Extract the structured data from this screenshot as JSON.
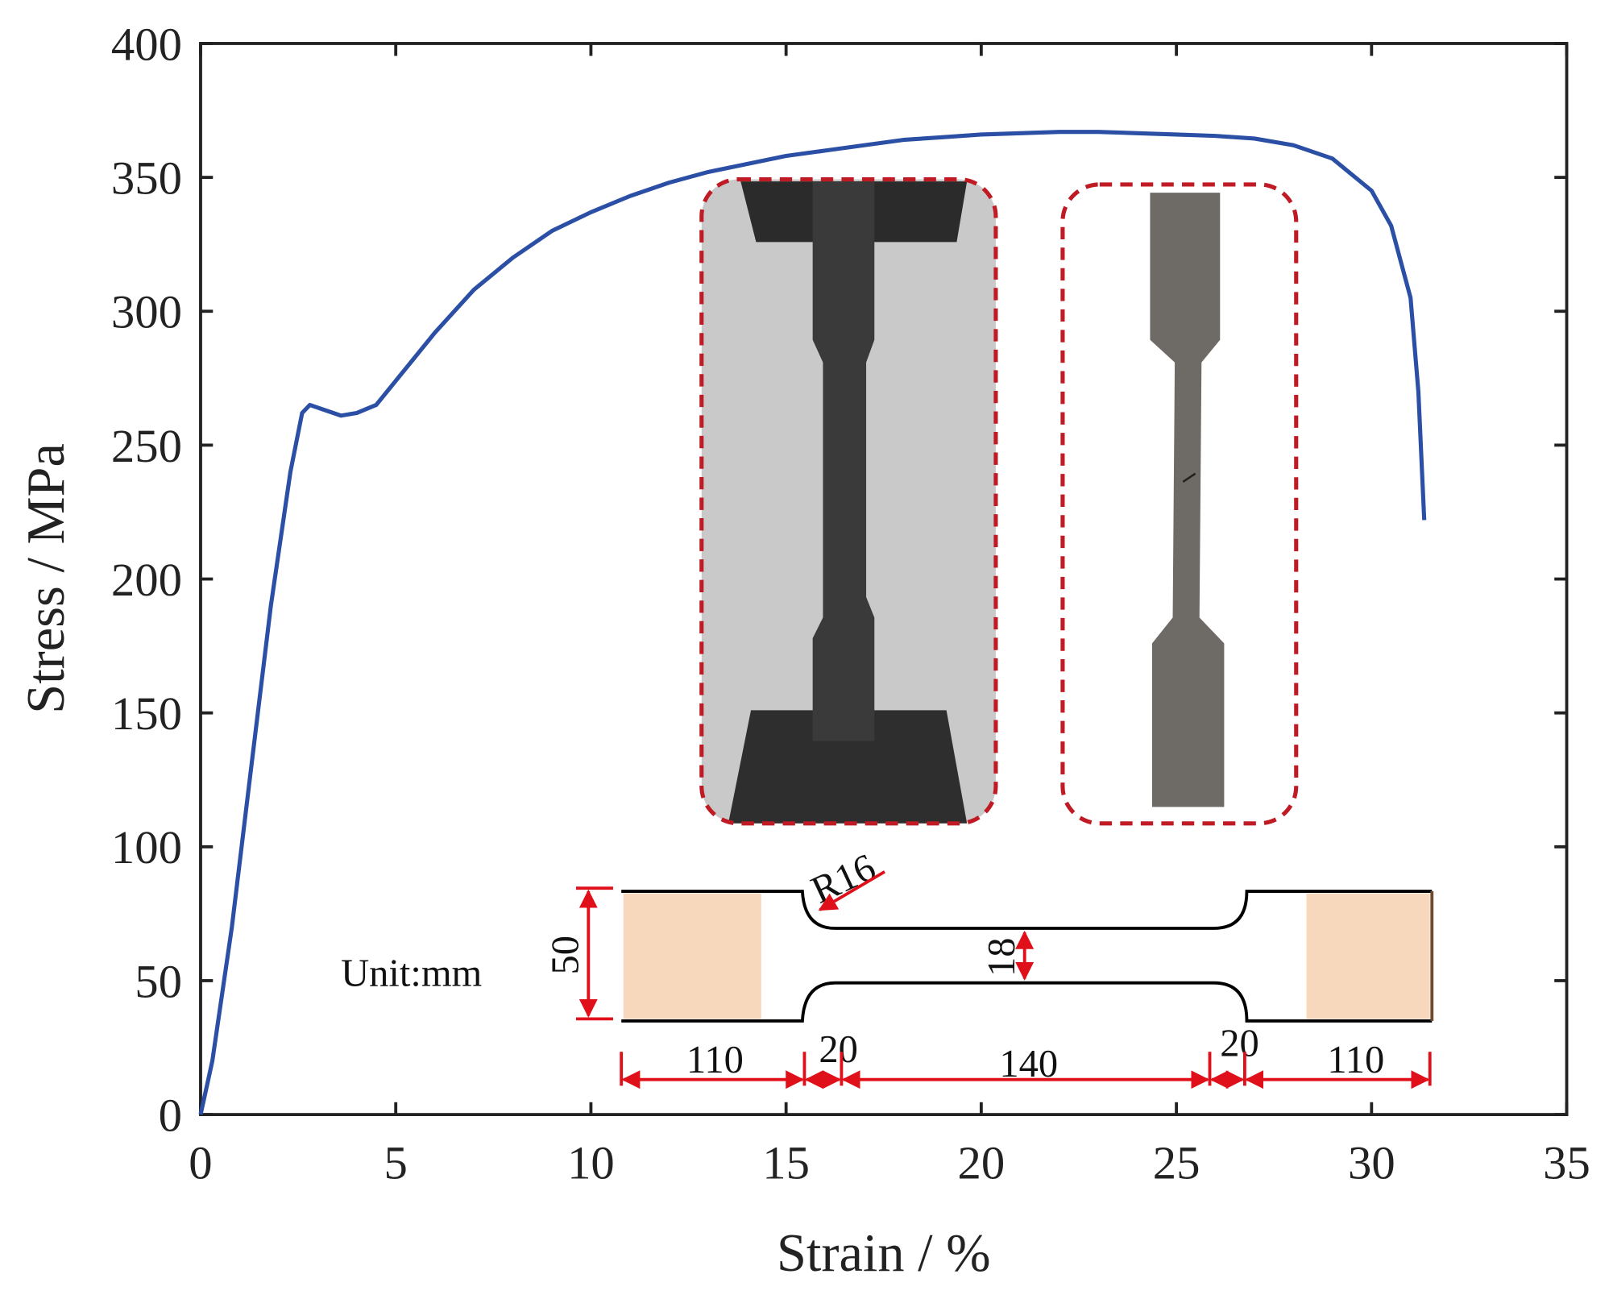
{
  "chart_data": {
    "type": "line",
    "xlabel": "Strain / %",
    "ylabel": "Stress / MPa",
    "x": [
      0,
      0.3,
      0.8,
      1.3,
      1.8,
      2.3,
      2.6,
      2.8,
      3.2,
      3.6,
      4.0,
      4.5,
      5,
      6,
      7,
      8,
      9,
      10,
      11,
      12,
      13,
      14,
      15,
      16,
      17,
      18,
      19,
      20,
      21,
      22,
      23,
      24,
      25,
      26,
      27,
      28,
      29,
      30,
      30.5,
      31,
      31.2,
      31.35
    ],
    "series": [
      {
        "color": "#2a4fa5",
        "values": [
          0,
          20,
          70,
          130,
          190,
          240,
          262,
          265,
          263,
          261,
          262,
          265,
          274,
          292,
          308,
          320,
          330,
          337,
          343,
          348,
          352,
          355,
          358,
          360,
          362,
          364,
          365,
          366,
          366.5,
          367,
          367,
          366.5,
          366,
          365.5,
          364.5,
          362,
          357,
          345,
          332,
          305,
          270,
          222
        ]
      }
    ],
    "xlim": [
      0,
      35
    ],
    "xticks": [
      0,
      5,
      10,
      15,
      20,
      25,
      30,
      35
    ],
    "ylim": [
      0,
      400
    ],
    "yticks": [
      0,
      50,
      100,
      150,
      200,
      250,
      300,
      350,
      400
    ],
    "annotations": [
      "Unit:mm",
      "R16",
      "50",
      "18",
      "110",
      "20",
      "140",
      "20",
      "110"
    ]
  }
}
